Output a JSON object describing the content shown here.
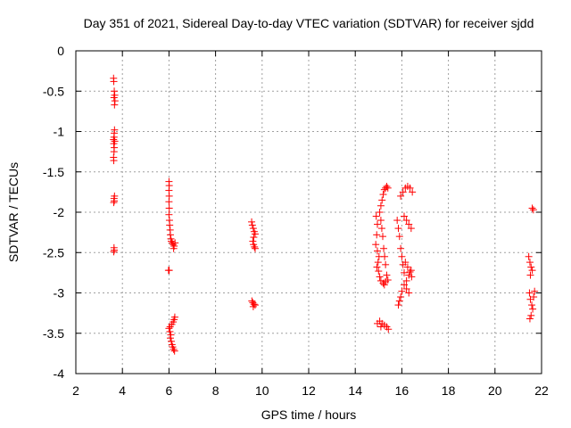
{
  "chart_data": {
    "type": "scatter",
    "title": "Day 351 of 2021, Sidereal Day-to-day VTEC variation (SDTVAR) for receiver sjdd",
    "xlabel": "GPS time / hours",
    "ylabel": "SDTVAR / TECUs",
    "xlim": [
      2,
      22
    ],
    "ylim": [
      -4,
      0
    ],
    "xticks": [
      "2",
      "4",
      "6",
      "8",
      "10",
      "12",
      "14",
      "16",
      "18",
      "20",
      "22"
    ],
    "yticks": [
      "0",
      "-0.5",
      "-1",
      "-1.5",
      "-2",
      "-2.5",
      "-3",
      "-3.5",
      "-4"
    ],
    "grid": true,
    "marker": "plus",
    "color": "#ff0000",
    "series": [
      {
        "name": "SDTVAR",
        "points": [
          [
            3.62,
            -0.34
          ],
          [
            3.63,
            -0.38
          ],
          [
            3.65,
            -0.5
          ],
          [
            3.67,
            -0.55
          ],
          [
            3.64,
            -0.58
          ],
          [
            3.68,
            -0.62
          ],
          [
            3.66,
            -0.67
          ],
          [
            3.66,
            -0.98
          ],
          [
            3.65,
            -1.02
          ],
          [
            3.64,
            -1.07
          ],
          [
            3.62,
            -1.1
          ],
          [
            3.67,
            -1.12
          ],
          [
            3.63,
            -1.15
          ],
          [
            3.65,
            -1.2
          ],
          [
            3.64,
            -1.25
          ],
          [
            3.62,
            -1.32
          ],
          [
            3.63,
            -1.36
          ],
          [
            3.66,
            -1.8
          ],
          [
            3.64,
            -1.83
          ],
          [
            3.65,
            -1.86
          ],
          [
            3.63,
            -1.88
          ],
          [
            3.64,
            -2.44
          ],
          [
            3.65,
            -2.47
          ],
          [
            3.63,
            -2.49
          ],
          [
            6.0,
            -1.62
          ],
          [
            6.01,
            -1.67
          ],
          [
            6.0,
            -1.73
          ],
          [
            6.01,
            -1.8
          ],
          [
            6.0,
            -1.87
          ],
          [
            6.01,
            -1.95
          ],
          [
            6.0,
            -2.03
          ],
          [
            6.02,
            -2.1
          ],
          [
            6.03,
            -2.16
          ],
          [
            6.05,
            -2.22
          ],
          [
            6.06,
            -2.28
          ],
          [
            6.08,
            -2.33
          ],
          [
            6.1,
            -2.36
          ],
          [
            6.14,
            -2.38
          ],
          [
            6.18,
            -2.4
          ],
          [
            6.22,
            -2.42
          ],
          [
            6.26,
            -2.38
          ],
          [
            6.2,
            -2.45
          ],
          [
            5.98,
            -2.72
          ],
          [
            6.01,
            -2.72
          ],
          [
            6.25,
            -3.3
          ],
          [
            6.22,
            -3.33
          ],
          [
            6.18,
            -3.36
          ],
          [
            6.12,
            -3.39
          ],
          [
            6.05,
            -3.42
          ],
          [
            6.0,
            -3.44
          ],
          [
            6.04,
            -3.48
          ],
          [
            6.08,
            -3.52
          ],
          [
            6.06,
            -3.56
          ],
          [
            6.1,
            -3.6
          ],
          [
            6.13,
            -3.64
          ],
          [
            6.16,
            -3.67
          ],
          [
            6.2,
            -3.7
          ],
          [
            6.24,
            -3.72
          ],
          [
            9.55,
            -2.12
          ],
          [
            9.58,
            -2.16
          ],
          [
            9.62,
            -2.2
          ],
          [
            9.66,
            -2.24
          ],
          [
            9.7,
            -2.27
          ],
          [
            9.64,
            -2.31
          ],
          [
            9.6,
            -2.36
          ],
          [
            9.63,
            -2.4
          ],
          [
            9.67,
            -2.43
          ],
          [
            9.7,
            -2.45
          ],
          [
            9.56,
            -3.1
          ],
          [
            9.6,
            -3.12
          ],
          [
            9.65,
            -3.14
          ],
          [
            9.7,
            -3.15
          ],
          [
            9.62,
            -3.17
          ],
          [
            14.9,
            -2.05
          ],
          [
            14.95,
            -2.15
          ],
          [
            14.92,
            -2.28
          ],
          [
            14.88,
            -2.4
          ],
          [
            14.95,
            -2.48
          ],
          [
            15.02,
            -2.55
          ],
          [
            14.98,
            -2.62
          ],
          [
            14.93,
            -2.68
          ],
          [
            15.0,
            -2.73
          ],
          [
            15.05,
            -2.0
          ],
          [
            15.1,
            -1.92
          ],
          [
            15.15,
            -1.85
          ],
          [
            15.2,
            -1.78
          ],
          [
            15.25,
            -1.72
          ],
          [
            15.3,
            -1.7
          ],
          [
            15.35,
            -1.68
          ],
          [
            15.4,
            -1.7
          ],
          [
            15.1,
            -2.1
          ],
          [
            15.14,
            -2.2
          ],
          [
            15.18,
            -2.3
          ],
          [
            15.22,
            -2.45
          ],
          [
            15.26,
            -2.55
          ],
          [
            15.3,
            -2.65
          ],
          [
            15.05,
            -2.8
          ],
          [
            15.1,
            -2.85
          ],
          [
            15.2,
            -2.88
          ],
          [
            15.3,
            -2.86
          ],
          [
            15.4,
            -2.84
          ],
          [
            15.35,
            -2.78
          ],
          [
            15.25,
            -2.9
          ],
          [
            14.95,
            -3.38
          ],
          [
            15.05,
            -3.35
          ],
          [
            15.15,
            -3.38
          ],
          [
            15.25,
            -3.4
          ],
          [
            15.35,
            -3.42
          ],
          [
            15.42,
            -3.45
          ],
          [
            15.1,
            -3.42
          ],
          [
            15.8,
            -2.1
          ],
          [
            15.85,
            -2.2
          ],
          [
            15.9,
            -2.3
          ],
          [
            15.95,
            -2.45
          ],
          [
            16.0,
            -2.55
          ],
          [
            16.05,
            -2.65
          ],
          [
            16.1,
            -2.75
          ],
          [
            15.95,
            -1.8
          ],
          [
            16.05,
            -1.75
          ],
          [
            16.15,
            -1.7
          ],
          [
            16.25,
            -1.68
          ],
          [
            16.35,
            -1.7
          ],
          [
            16.45,
            -1.75
          ],
          [
            16.1,
            -2.05
          ],
          [
            16.2,
            -2.1
          ],
          [
            16.3,
            -2.15
          ],
          [
            16.4,
            -2.2
          ],
          [
            15.85,
            -3.15
          ],
          [
            15.9,
            -3.1
          ],
          [
            15.95,
            -3.05
          ],
          [
            16.0,
            -2.98
          ],
          [
            16.1,
            -2.9
          ],
          [
            16.2,
            -2.85
          ],
          [
            16.3,
            -2.78
          ],
          [
            16.4,
            -2.72
          ],
          [
            16.15,
            -2.62
          ],
          [
            16.25,
            -2.68
          ],
          [
            16.35,
            -2.74
          ],
          [
            16.42,
            -2.8
          ],
          [
            16.2,
            -2.95
          ],
          [
            16.3,
            -3.0
          ],
          [
            21.45,
            -2.55
          ],
          [
            21.5,
            -2.62
          ],
          [
            21.55,
            -2.68
          ],
          [
            21.6,
            -2.72
          ],
          [
            21.52,
            -2.78
          ],
          [
            21.6,
            -1.95
          ],
          [
            21.65,
            -1.97
          ],
          [
            21.48,
            -3.0
          ],
          [
            21.52,
            -3.08
          ],
          [
            21.58,
            -3.15
          ],
          [
            21.62,
            -3.2
          ],
          [
            21.66,
            -3.05
          ],
          [
            21.7,
            -2.98
          ],
          [
            21.55,
            -3.28
          ],
          [
            21.5,
            -3.32
          ]
        ]
      }
    ]
  }
}
